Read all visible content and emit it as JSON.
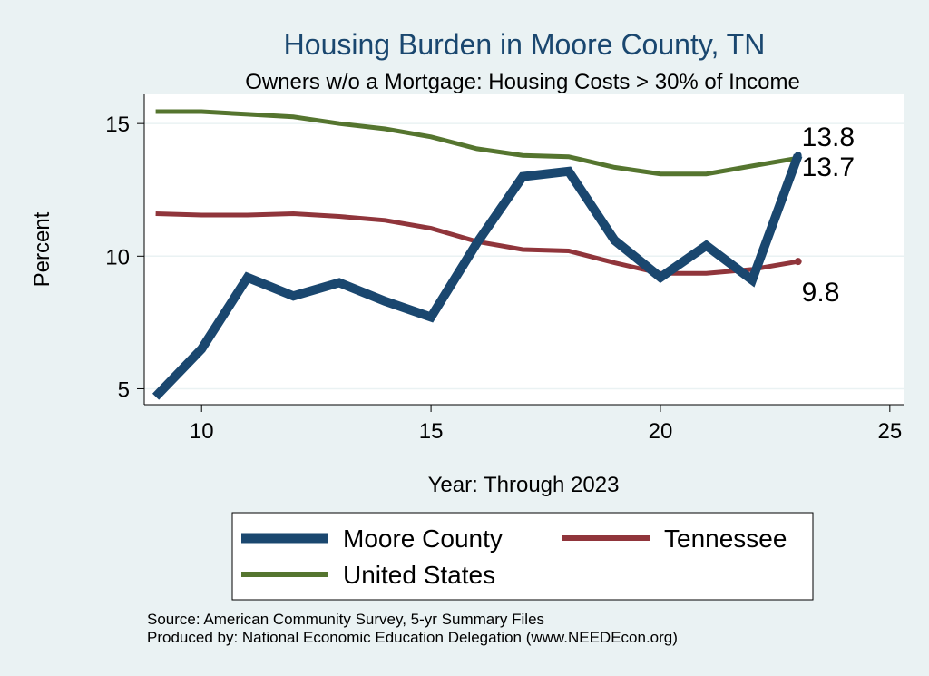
{
  "chart_data": {
    "type": "line",
    "title": "Housing Burden in Moore County, TN",
    "subtitle": "Owners w/o a Mortgage: Housing Costs > 30% of Income",
    "xlabel": "Year: Through 2023",
    "ylabel": "Percent",
    "xlim": [
      8.75,
      25.3
    ],
    "ylim": [
      4.4,
      16.1
    ],
    "xticks": [
      10,
      15,
      20,
      25
    ],
    "yticks": [
      5,
      10,
      15
    ],
    "grid": true,
    "legend_position": "bottom",
    "x": [
      9,
      10,
      11,
      12,
      13,
      14,
      15,
      16,
      17,
      18,
      19,
      20,
      21,
      22,
      23
    ],
    "series": [
      {
        "name": "Moore County",
        "color": "#1a476f",
        "values": [
          4.7,
          6.5,
          9.2,
          8.5,
          9.0,
          8.3,
          7.7,
          10.5,
          13.0,
          13.2,
          10.6,
          9.2,
          10.4,
          9.1,
          13.8
        ],
        "end_label": "13.8"
      },
      {
        "name": "Tennessee",
        "color": "#90353b",
        "values": [
          11.6,
          11.55,
          11.55,
          11.6,
          11.5,
          11.35,
          11.05,
          10.55,
          10.25,
          10.2,
          9.75,
          9.35,
          9.35,
          9.5,
          9.8
        ],
        "end_label": "9.8"
      },
      {
        "name": "United States",
        "color": "#55752f",
        "values": [
          15.45,
          15.45,
          15.35,
          15.25,
          15.0,
          14.8,
          14.5,
          14.05,
          13.8,
          13.75,
          13.35,
          13.1,
          13.1,
          13.4,
          13.7
        ],
        "end_label": "13.7"
      }
    ],
    "notes": [
      "Source: American Community Survey, 5-yr Summary Files",
      "Produced by: National Economic Education Delegation (www.NEEDEcon.org)"
    ]
  },
  "style": {
    "background": "#eaf2f3",
    "plot_background": "#ffffff",
    "grid_color": "#eaf2f3",
    "title_color": "#1a476f"
  }
}
